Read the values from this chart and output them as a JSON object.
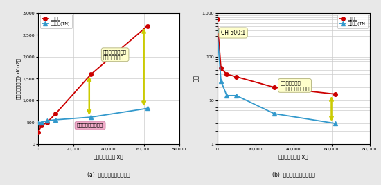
{
  "left": {
    "red_x": [
      0,
      2000,
      5000,
      10000,
      30000,
      62000
    ],
    "red_y": [
      280,
      430,
      500,
      700,
      1600,
      2700
    ],
    "blue_x": [
      0,
      2000,
      5000,
      10000,
      30000,
      62000
    ],
    "blue_y": [
      500,
      500,
      540,
      560,
      620,
      820
    ],
    "xlabel": "外亂光的照度（lx）",
    "ylabel": "面板表面的輝度（cd/m2）",
    "ylim": [
      0,
      3000
    ],
    "yticks": [
      0,
      500,
      1000,
      1500,
      2000,
      2500,
      3000
    ],
    "xticks": [
      0,
      20000,
      40000,
      60000,
      80000
    ],
    "xticklabels": [
      "0",
      "20,000",
      "40,000",
      "60,000",
      "80,000"
    ],
    "yticklabels": [
      "0",
      "500",
      "1,000",
      "1,500",
      "2,000",
      "2,500",
      "3,000"
    ],
    "caption": "(a)  外部光線下的影像輝度",
    "annotation1": "利用反射題示功能\n改善輝度的效果",
    "annotation2": "表面反射造成的影響",
    "legend1": "半穿透型",
    "legend2": "半穿透型(TN)"
  },
  "right": {
    "red_x": [
      0,
      2000,
      5000,
      10000,
      30000,
      62000
    ],
    "red_y": [
      700,
      55,
      40,
      35,
      20,
      14
    ],
    "blue_x": [
      0,
      2000,
      5000,
      10000,
      30000,
      62000
    ],
    "blue_y": [
      400,
      28,
      13,
      13,
      5,
      3
    ],
    "xlabel": "外亂光的照度（lx）",
    "ylabel": "對比",
    "caption": "(b)  外部光線下的影像對比",
    "annotation_ch": "CH 500:1",
    "annotation1": "外部光線入射時\n可能穩定題示的視認性",
    "legend1": "半穿透型",
    "legend2": "半穿透型(TN",
    "yticks": [
      1,
      10,
      100,
      1000
    ],
    "yticklabels": [
      "1",
      "10",
      "100",
      "1,000"
    ],
    "xticks": [
      0,
      20000,
      40000,
      60000,
      80000
    ],
    "xticklabels": [
      "0",
      "20,000",
      "40,000",
      "60,000",
      "80,000"
    ]
  },
  "red_color": "#cc0000",
  "blue_color": "#3399cc",
  "arrow_color": "#cccc00",
  "fig_bg": "#e8e8e8",
  "plot_bg": "#ffffff",
  "grid_color": "#cccccc"
}
